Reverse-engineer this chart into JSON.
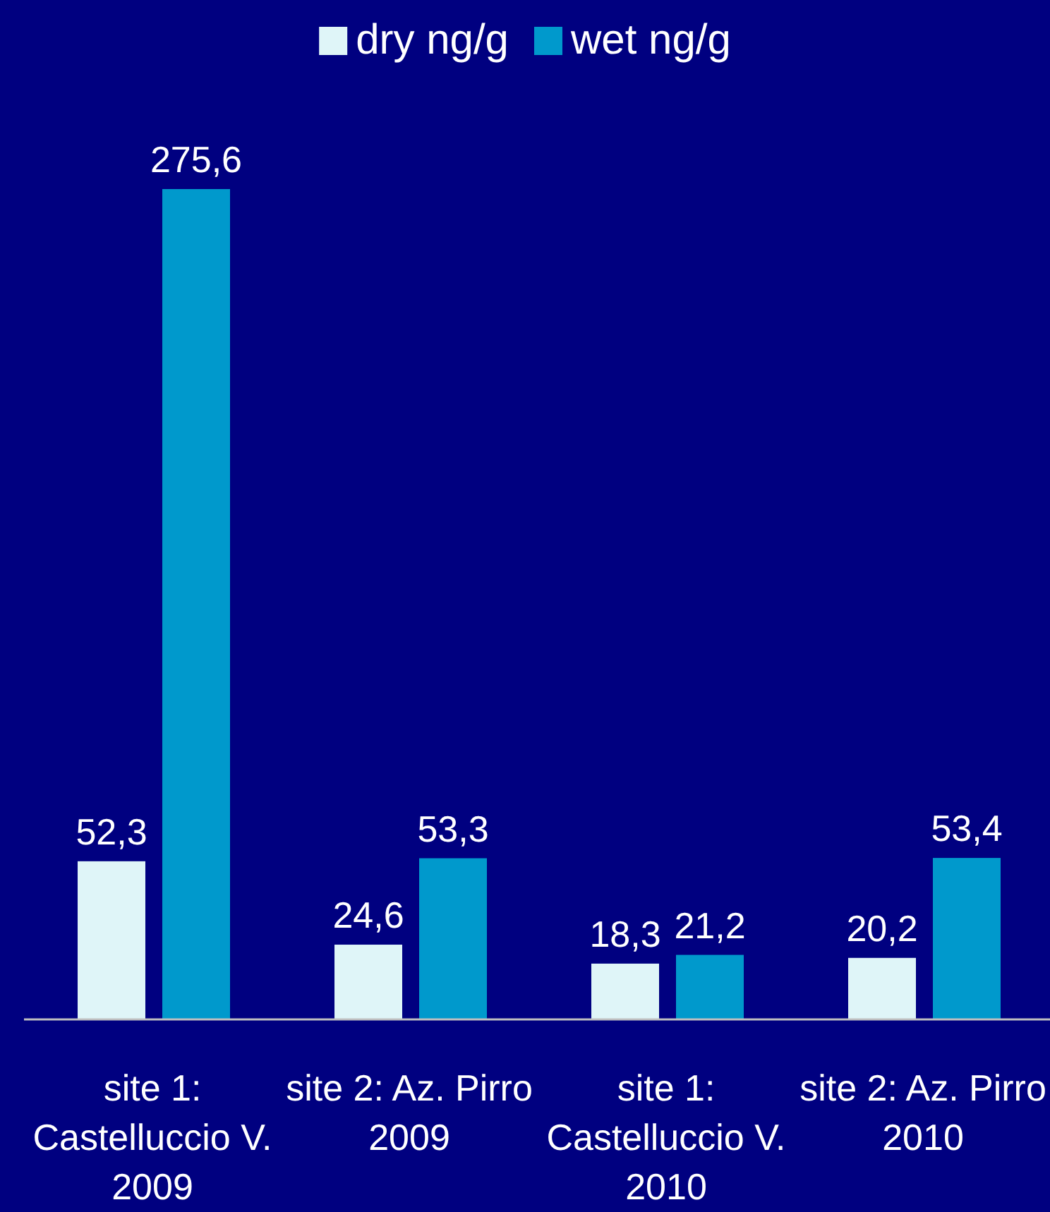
{
  "chart_data": {
    "type": "bar",
    "categories": [
      "site 1: Castelluccio V. 2009",
      "site 2: Az. Pirro 2009",
      "site 1: Castelluccio V. 2010",
      "site 2: Az. Pirro 2010"
    ],
    "series": [
      {
        "name": "dry ng/g",
        "color": "#dff5f8",
        "values": [
          52.3,
          24.6,
          18.3,
          20.2
        ],
        "value_labels": [
          "52,3",
          "24,6",
          "18,3",
          "20,2"
        ]
      },
      {
        "name": "wet ng/g",
        "color": "#0099cc",
        "values": [
          275.6,
          53.3,
          21.2,
          53.4
        ],
        "value_labels": [
          "275,6",
          "53,3",
          "21,2",
          "53,4"
        ]
      }
    ],
    "legend": "top"
  }
}
